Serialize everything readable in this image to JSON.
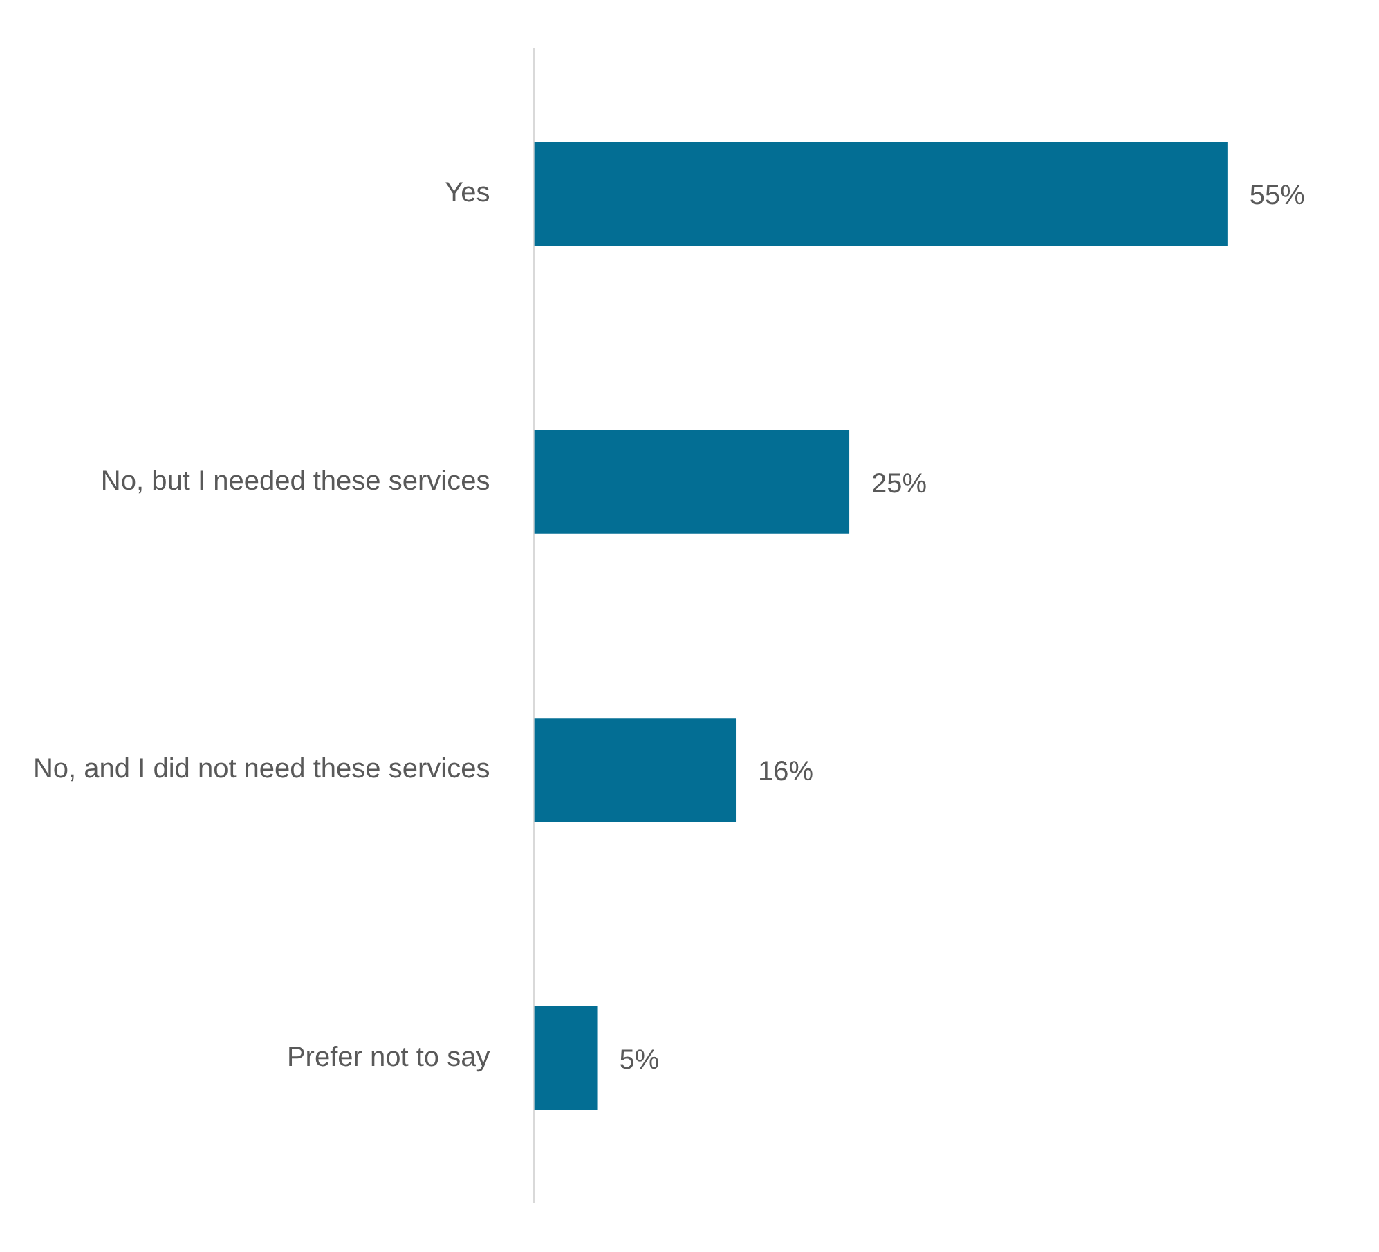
{
  "chart_data": {
    "type": "bar",
    "orientation": "horizontal",
    "categories": [
      "Yes",
      "No, but I needed these services",
      "No, and I did not need these services",
      "Prefer not to say"
    ],
    "values": [
      55,
      25,
      16,
      5
    ],
    "value_labels": [
      "55%",
      "25%",
      "16%",
      "5%"
    ],
    "color": "#036e94",
    "legend": false
  }
}
